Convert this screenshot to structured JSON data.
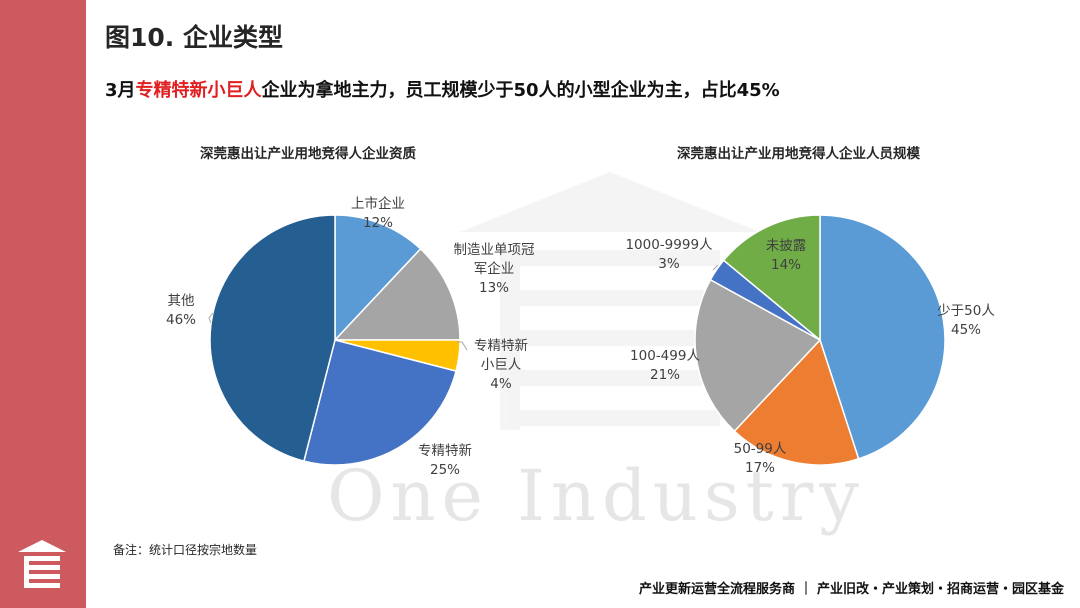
{
  "title": "图10. 企业类型",
  "subtitle": {
    "prefix": "3月",
    "highlight": "专精特新小巨人",
    "suffix": "企业为拿地主力，员工规模少于50人的小型企业为主，占比45%"
  },
  "note": "备注：统计口径按宗地数量",
  "footer": "产业更新运营全流程服务商 ｜ 产业旧改・产业策划・招商运营・园区基金",
  "watermark": "One Industry",
  "chart_data": [
    {
      "type": "pie",
      "title": "深莞惠出让产业用地竞得人企业资质",
      "unit": "%",
      "slices": [
        {
          "lines": [
            "上市企业"
          ],
          "value": 12,
          "color": "#5b9bd5"
        },
        {
          "lines": [
            "制造业单项冠",
            "军企业"
          ],
          "value": 13,
          "color": "#a5a5a5"
        },
        {
          "lines": [
            "专精特新",
            "小巨人"
          ],
          "value": 4,
          "color": "#ffc000"
        },
        {
          "lines": [
            "专精特新"
          ],
          "value": 25,
          "color": "#4472c4"
        },
        {
          "lines": [
            "其他"
          ],
          "value": 46,
          "color": "#255e91"
        }
      ]
    },
    {
      "type": "pie",
      "title": "深莞惠出让产业用地竞得人企业人员规模",
      "unit": "%",
      "slices": [
        {
          "lines": [
            "少于50人"
          ],
          "value": 45,
          "color": "#5b9bd5"
        },
        {
          "lines": [
            "50-99人"
          ],
          "value": 17,
          "color": "#ed7d31"
        },
        {
          "lines": [
            "100-499人"
          ],
          "value": 21,
          "color": "#a5a5a5"
        },
        {
          "lines": [
            "1000-9999人"
          ],
          "value": 3,
          "color": "#4472c4"
        },
        {
          "lines": [
            "未披露"
          ],
          "value": 14,
          "color": "#70ad47"
        }
      ]
    }
  ]
}
